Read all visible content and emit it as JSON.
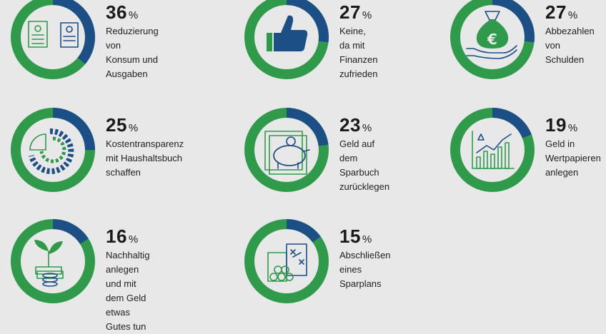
{
  "colors": {
    "share": "#1b4f86",
    "rest": "#2e9a4a",
    "background": "#e8e8e8"
  },
  "percent_sign": "%",
  "chart_data": {
    "type": "pie",
    "categories": [
      "Reduzierung von\nKonsum und Ausgaben",
      "Keine, da mit Finanzen\nzufrieden",
      "Abbezahlen\nvon Schulden",
      "Kostentransparenz\nmit Haushaltsbuch\nschaffen",
      "Geld auf dem\nSparbuch\nzurücklegen",
      "Geld in\nWertpapieren\nanlegen",
      "Nachhaltig anlegen\nund mit dem Geld\netwas Gutes tun",
      "Abschließen\neines Sparplans"
    ],
    "values": [
      36,
      27,
      27,
      25,
      23,
      19,
      16,
      15
    ],
    "unit": "%"
  },
  "icons": [
    "documents-icon",
    "thumbs-up-icon",
    "money-bag-icon",
    "budget-chart-icon",
    "piggy-bank-icon",
    "stock-chart-icon",
    "sustainable-plant-icon",
    "savings-plan-icon"
  ]
}
